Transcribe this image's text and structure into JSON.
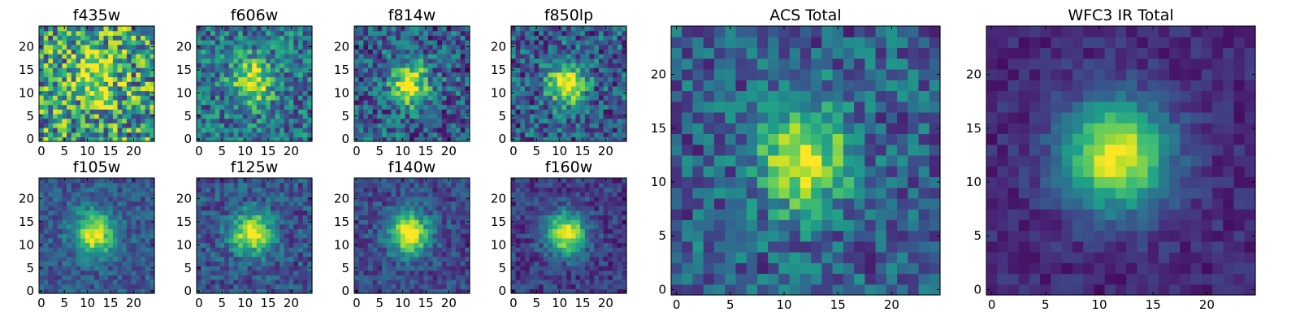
{
  "chart_data": [
    {
      "type": "heatmap",
      "title": "f435w",
      "grid": 25,
      "center": [
        12,
        13.5
      ],
      "sigma": [
        3.2,
        4.2
      ],
      "noise": 0.85,
      "background": 0.55,
      "peak": 0.45,
      "xticks": [
        "0",
        "5",
        "10",
        "15",
        "20"
      ],
      "yticks": [
        "0",
        "5",
        "10",
        "15",
        "20"
      ],
      "xlim": [
        0,
        24
      ],
      "ylim": [
        0,
        24
      ]
    },
    {
      "type": "heatmap",
      "title": "f606w",
      "grid": 25,
      "center": [
        11.5,
        12.5
      ],
      "sigma": [
        3.0,
        3.6
      ],
      "noise": 0.55,
      "background": 0.38,
      "peak": 0.6,
      "xticks": [
        "0",
        "5",
        "10",
        "15",
        "20"
      ],
      "yticks": [
        "0",
        "5",
        "10",
        "15",
        "20"
      ],
      "xlim": [
        0,
        24
      ],
      "ylim": [
        0,
        24
      ]
    },
    {
      "type": "heatmap",
      "title": "f814w",
      "grid": 25,
      "center": [
        11.5,
        12
      ],
      "sigma": [
        2.8,
        3.4
      ],
      "noise": 0.55,
      "background": 0.3,
      "peak": 0.68,
      "xticks": [
        "0",
        "5",
        "10",
        "15",
        "20"
      ],
      "yticks": [
        "0",
        "5",
        "10",
        "15",
        "20"
      ],
      "xlim": [
        0,
        24
      ],
      "ylim": [
        0,
        24
      ]
    },
    {
      "type": "heatmap",
      "title": "f850lp",
      "grid": 25,
      "center": [
        11.5,
        12
      ],
      "sigma": [
        2.8,
        3.4
      ],
      "noise": 0.55,
      "background": 0.3,
      "peak": 0.68,
      "xticks": [
        "0",
        "5",
        "10",
        "15",
        "20"
      ],
      "yticks": [
        "0",
        "5",
        "10",
        "15",
        "20"
      ],
      "xlim": [
        0,
        24
      ],
      "ylim": [
        0,
        24
      ]
    },
    {
      "type": "heatmap",
      "title": "f105w",
      "grid": 25,
      "center": [
        11.5,
        12.5
      ],
      "sigma": [
        3.0,
        3.2
      ],
      "noise": 0.3,
      "background": 0.28,
      "peak": 0.72,
      "xticks": [
        "0",
        "5",
        "10",
        "15",
        "20"
      ],
      "yticks": [
        "0",
        "5",
        "10",
        "15",
        "20"
      ],
      "xlim": [
        0,
        24
      ],
      "ylim": [
        0,
        24
      ]
    },
    {
      "type": "heatmap",
      "title": "f125w",
      "grid": 25,
      "center": [
        11.5,
        12.5
      ],
      "sigma": [
        3.0,
        3.2
      ],
      "noise": 0.35,
      "background": 0.26,
      "peak": 0.74,
      "xticks": [
        "0",
        "5",
        "10",
        "15",
        "20"
      ],
      "yticks": [
        "0",
        "5",
        "10",
        "15",
        "20"
      ],
      "xlim": [
        0,
        24
      ],
      "ylim": [
        0,
        24
      ]
    },
    {
      "type": "heatmap",
      "title": "f140w",
      "grid": 25,
      "center": [
        11.5,
        12.5
      ],
      "sigma": [
        3.1,
        3.3
      ],
      "noise": 0.3,
      "background": 0.22,
      "peak": 0.78,
      "xticks": [
        "0",
        "5",
        "10",
        "15",
        "20"
      ],
      "yticks": [
        "0",
        "5",
        "10",
        "15",
        "20"
      ],
      "xlim": [
        0,
        24
      ],
      "ylim": [
        0,
        24
      ]
    },
    {
      "type": "heatmap",
      "title": "f160w",
      "grid": 25,
      "center": [
        11.5,
        12.5
      ],
      "sigma": [
        3.0,
        3.2
      ],
      "noise": 0.28,
      "background": 0.18,
      "peak": 0.82,
      "xticks": [
        "0",
        "5",
        "10",
        "15",
        "20"
      ],
      "yticks": [
        "0",
        "5",
        "10",
        "15",
        "20"
      ],
      "xlim": [
        0,
        24
      ],
      "ylim": [
        0,
        24
      ]
    },
    {
      "type": "heatmap",
      "title": "ACS Total",
      "grid": 25,
      "center": [
        11.8,
        12.2
      ],
      "sigma": [
        2.8,
        3.6
      ],
      "noise": 0.45,
      "background": 0.3,
      "peak": 0.7,
      "xticks": [
        "0",
        "5",
        "10",
        "15",
        "20"
      ],
      "yticks": [
        "0",
        "5",
        "10",
        "15",
        "20"
      ],
      "xlim": [
        0,
        24
      ],
      "ylim": [
        0,
        24
      ]
    },
    {
      "type": "heatmap",
      "title": "WFC3 IR Total",
      "grid": 25,
      "center": [
        11.5,
        12.5
      ],
      "sigma": [
        3.4,
        3.5
      ],
      "noise": 0.18,
      "background": 0.12,
      "peak": 0.88,
      "xticks": [
        "0",
        "5",
        "10",
        "15",
        "20"
      ],
      "yticks": [
        "0",
        "5",
        "10",
        "15",
        "20"
      ],
      "xlim": [
        0,
        24
      ],
      "ylim": [
        0,
        24
      ]
    }
  ],
  "colors": {
    "viridis": [
      "#440154",
      "#482878",
      "#3e4989",
      "#31688e",
      "#26828e",
      "#1f9e89",
      "#35b779",
      "#6ece58",
      "#b5de2b",
      "#fde725"
    ]
  }
}
